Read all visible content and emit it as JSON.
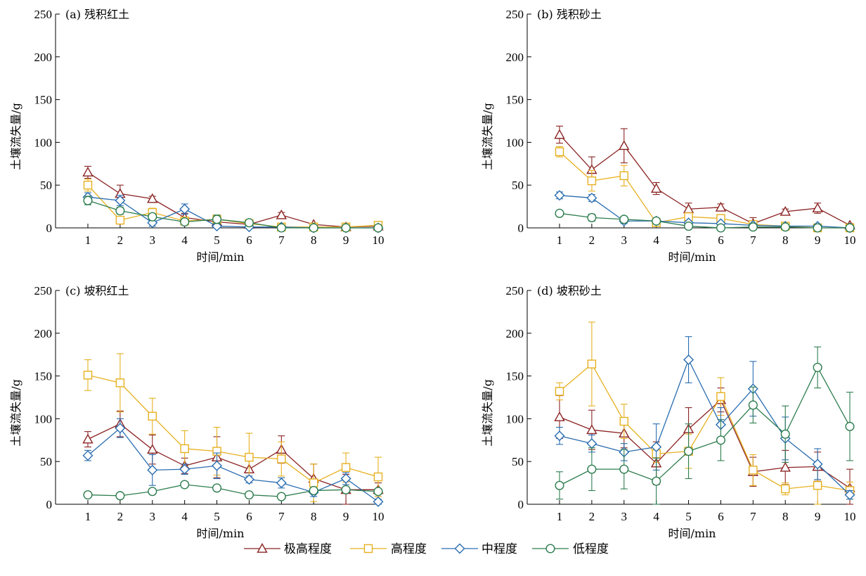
{
  "legend": [
    {
      "key": "extreme",
      "label": "极高程度",
      "color": "#8B2323",
      "marker": "triangle"
    },
    {
      "key": "high",
      "label": "高程度",
      "color": "#E6B020",
      "marker": "square"
    },
    {
      "key": "medium",
      "label": "中程度",
      "color": "#2A6DB0",
      "marker": "diamond"
    },
    {
      "key": "low",
      "label": "低程度",
      "color": "#2E7D4F",
      "marker": "circle"
    }
  ],
  "chart_data": [
    {
      "type": "line",
      "title": "(a) 残积红土",
      "xlabel": "时间/min",
      "ylabel": "土壤流失量/g",
      "ylim": [
        0,
        250
      ],
      "yticks": [
        0,
        50,
        100,
        150,
        200,
        250
      ],
      "x": [
        1,
        2,
        3,
        4,
        5,
        6,
        7,
        8,
        9,
        10
      ],
      "series": [
        {
          "name": "极高程度",
          "values": [
            65,
            40,
            34,
            12,
            7,
            4,
            15,
            4,
            1,
            2
          ],
          "errors": [
            7,
            10,
            3,
            5,
            3,
            2,
            3,
            1,
            1,
            1
          ]
        },
        {
          "name": "高程度",
          "values": [
            50,
            9,
            18,
            8,
            10,
            5,
            1,
            1,
            1,
            3
          ],
          "errors": [
            7,
            3,
            5,
            3,
            5,
            3,
            1,
            1,
            1,
            1
          ]
        },
        {
          "name": "中程度",
          "values": [
            36,
            32,
            6,
            22,
            2,
            1,
            1,
            0,
            0,
            0
          ],
          "errors": [
            5,
            6,
            4,
            6,
            2,
            1,
            1,
            1,
            1,
            1
          ]
        },
        {
          "name": "低程度",
          "values": [
            32,
            20,
            13,
            7,
            10,
            6,
            0,
            0,
            0,
            0
          ],
          "errors": [
            5,
            4,
            3,
            2,
            5,
            2,
            1,
            1,
            1,
            1
          ]
        }
      ]
    },
    {
      "type": "line",
      "title": "(b) 残积砂土",
      "xlabel": "时间/min",
      "ylabel": "土壤流失量/g",
      "ylim": [
        0,
        250
      ],
      "yticks": [
        0,
        50,
        100,
        150,
        200,
        250
      ],
      "x": [
        1,
        2,
        3,
        4,
        5,
        6,
        7,
        8,
        9,
        10
      ],
      "series": [
        {
          "name": "极高程度",
          "values": [
            109,
            68,
            96,
            46,
            22,
            24,
            5,
            19,
            23,
            3
          ],
          "errors": [
            10,
            15,
            20,
            7,
            7,
            4,
            7,
            3,
            6,
            2
          ]
        },
        {
          "name": "高程度",
          "values": [
            89,
            55,
            61,
            6,
            13,
            11,
            4,
            2,
            0,
            0
          ],
          "errors": [
            6,
            12,
            12,
            3,
            4,
            3,
            2,
            1,
            1,
            1
          ]
        },
        {
          "name": "中程度",
          "values": [
            38,
            35,
            8,
            8,
            6,
            5,
            3,
            2,
            2,
            0
          ],
          "errors": [
            4,
            4,
            3,
            3,
            2,
            2,
            1,
            1,
            1,
            1
          ]
        },
        {
          "name": "低程度",
          "values": [
            17,
            12,
            10,
            8,
            2,
            0,
            1,
            1,
            0,
            0
          ],
          "errors": [
            3,
            4,
            3,
            2,
            1,
            1,
            1,
            1,
            1,
            1
          ]
        }
      ]
    },
    {
      "type": "line",
      "title": "(c) 坡积红土",
      "xlabel": "时间/min",
      "ylabel": "土壤流失量/g",
      "ylim": [
        0,
        250
      ],
      "yticks": [
        0,
        50,
        100,
        150,
        200,
        250
      ],
      "x": [
        1,
        2,
        3,
        4,
        5,
        6,
        7,
        8,
        9,
        10
      ],
      "series": [
        {
          "name": "极高程度",
          "values": [
            76,
            94,
            64,
            45,
            55,
            41,
            64,
            30,
            17,
            17
          ],
          "errors": [
            9,
            15,
            17,
            9,
            24,
            13,
            16,
            17,
            18,
            8
          ]
        },
        {
          "name": "高程度",
          "values": [
            151,
            142,
            103,
            65,
            62,
            55,
            53,
            25,
            43,
            32
          ],
          "errors": [
            18,
            34,
            21,
            21,
            28,
            28,
            20,
            22,
            17,
            23
          ]
        },
        {
          "name": "中程度",
          "values": [
            57,
            89,
            40,
            41,
            45,
            29,
            25,
            14,
            30,
            3
          ],
          "errors": [
            6,
            11,
            18,
            6,
            15,
            4,
            6,
            5,
            7,
            3
          ]
        },
        {
          "name": "低程度",
          "values": [
            11,
            10,
            15,
            23,
            19,
            11,
            9,
            16,
            17,
            15
          ],
          "errors": [
            2,
            2,
            3,
            3,
            3,
            2,
            2,
            3,
            3,
            3
          ]
        }
      ]
    },
    {
      "type": "line",
      "title": "(d) 坡积砂土",
      "xlabel": "时间/min",
      "ylabel": "土壤流失量/g",
      "ylim": [
        0,
        250
      ],
      "yticks": [
        0,
        50,
        100,
        150,
        200,
        250
      ],
      "x": [
        1,
        2,
        3,
        4,
        5,
        6,
        7,
        8,
        9,
        10
      ],
      "series": [
        {
          "name": "极高程度",
          "values": [
            102,
            87,
            83,
            48,
            88,
            122,
            38,
            43,
            44,
            19
          ],
          "errors": [
            25,
            23,
            17,
            25,
            25,
            14,
            17,
            20,
            17,
            22
          ]
        },
        {
          "name": "高程度",
          "values": [
            132,
            164,
            97,
            59,
            62,
            126,
            40,
            18,
            22,
            16
          ],
          "errors": [
            10,
            49,
            20,
            10,
            20,
            22,
            18,
            7,
            22,
            10
          ]
        },
        {
          "name": "中程度",
          "values": [
            80,
            71,
            61,
            67,
            169,
            93,
            135,
            77,
            47,
            11
          ],
          "errors": [
            10,
            10,
            10,
            27,
            27,
            20,
            32,
            25,
            18,
            5
          ]
        },
        {
          "name": "低程度",
          "values": [
            22,
            41,
            41,
            27,
            62,
            75,
            116,
            82,
            160,
            91
          ],
          "errors": [
            16,
            25,
            23,
            27,
            32,
            24,
            21,
            33,
            24,
            40
          ]
        }
      ]
    }
  ]
}
